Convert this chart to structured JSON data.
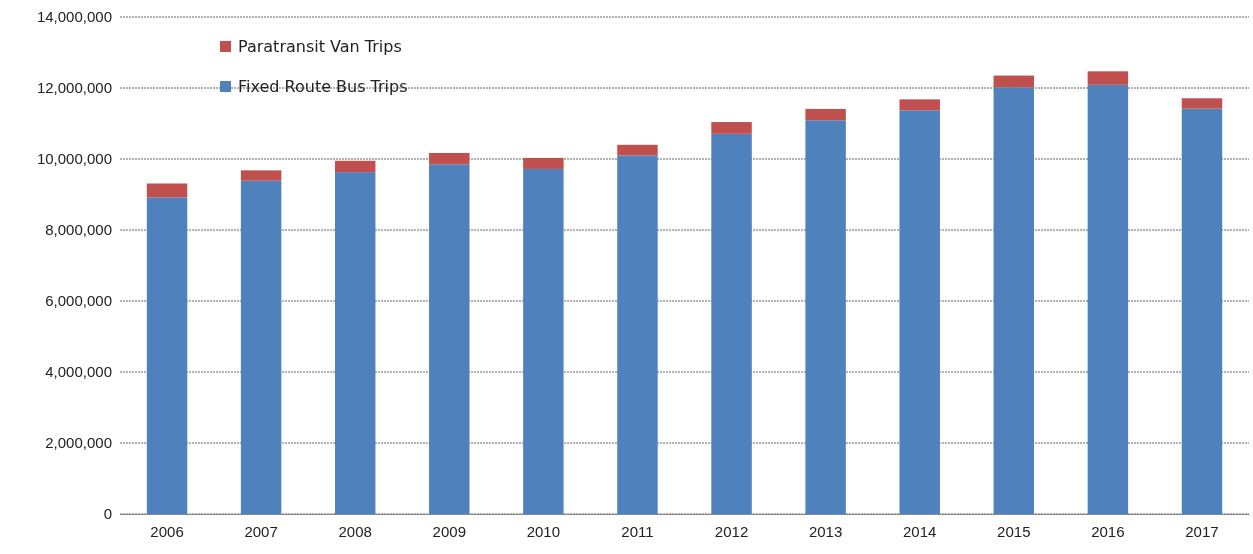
{
  "chart_data": {
    "type": "bar",
    "stacked": true,
    "categories": [
      "2006",
      "2007",
      "2008",
      "2009",
      "2010",
      "2011",
      "2012",
      "2013",
      "2014",
      "2015",
      "2016",
      "2017"
    ],
    "series": [
      {
        "name": "Fixed Route Bus Trips",
        "color": "#4f81bd",
        "values": [
          8920000,
          9390000,
          9630000,
          9850000,
          9720000,
          10100000,
          10710000,
          11090000,
          11370000,
          12020000,
          12090000,
          11420000
        ]
      },
      {
        "name": "Paratransit Van Trips",
        "color": "#c0504d",
        "values": [
          390000,
          290000,
          320000,
          320000,
          310000,
          300000,
          330000,
          320000,
          310000,
          330000,
          380000,
          290000
        ]
      }
    ],
    "ylim": [
      0,
      14000000
    ],
    "yticks": [
      {
        "value": 0,
        "label": "0"
      },
      {
        "value": 2000000,
        "label": "2,000,000"
      },
      {
        "value": 4000000,
        "label": "4,000,000"
      },
      {
        "value": 6000000,
        "label": "6,000,000"
      },
      {
        "value": 8000000,
        "label": "8,000,000"
      },
      {
        "value": 10000000,
        "label": "10,000,000"
      },
      {
        "value": 12000000,
        "label": "12,000,000"
      },
      {
        "value": 14000000,
        "label": "14,000,000"
      }
    ],
    "grid": "y",
    "legend": "top left"
  }
}
